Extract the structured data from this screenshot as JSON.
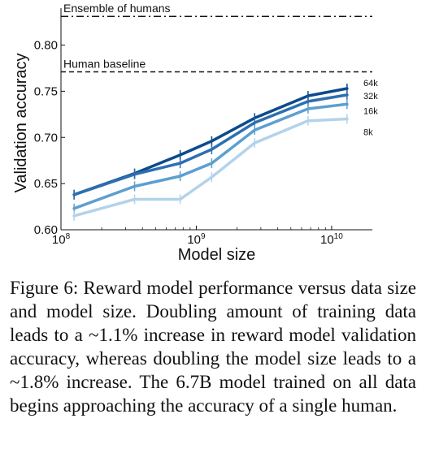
{
  "chart_data": {
    "type": "line",
    "xlabel": "Model size",
    "ylabel": "Validation accuracy",
    "x_scale": "log",
    "xlim": [
      100000000,
      20000000000
    ],
    "ylim": [
      0.6,
      0.84
    ],
    "x_ticks": [
      {
        "value": 100000000,
        "base": "10",
        "exp": "8"
      },
      {
        "value": 1000000000,
        "base": "10",
        "exp": "9"
      },
      {
        "value": 10000000000,
        "base": "10",
        "exp": "10"
      }
    ],
    "y_ticks": [
      {
        "value": 0.6,
        "label": "0.60"
      },
      {
        "value": 0.65,
        "label": "0.65"
      },
      {
        "value": 0.7,
        "label": "0.70"
      },
      {
        "value": 0.75,
        "label": "0.75"
      },
      {
        "value": 0.8,
        "label": "0.80"
      }
    ],
    "x": [
      125000000,
      350000000,
      760000000,
      1300000000,
      2700000000,
      6700000000,
      13000000000
    ],
    "series": [
      {
        "name": "64k",
        "color": "#0d4a8c",
        "values": [
          0.638,
          0.661,
          0.681,
          0.696,
          0.721,
          0.745,
          0.753
        ]
      },
      {
        "name": "32k",
        "color": "#2d6fb0",
        "values": [
          0.638,
          0.66,
          0.672,
          0.687,
          0.716,
          0.739,
          0.746
        ]
      },
      {
        "name": "16k",
        "color": "#5d9fcf",
        "values": [
          0.623,
          0.647,
          0.658,
          0.672,
          0.708,
          0.731,
          0.736
        ]
      },
      {
        "name": "8k",
        "color": "#b3d3ea",
        "values": [
          0.615,
          0.633,
          0.633,
          0.657,
          0.694,
          0.718,
          0.72
        ]
      }
    ],
    "reference_lines": [
      {
        "label": "Ensemble of humans",
        "value": 0.831,
        "style": "dashdot"
      },
      {
        "label": "Human baseline",
        "value": 0.771,
        "style": "dashed"
      }
    ],
    "grid": false
  },
  "caption": "Figure 6: Reward model performance versus data size and model size. Doubling amount of training data leads to a ~1.1% increase in reward model validation accuracy, whereas doubling the model size leads to a ~1.8% increase. The 6.7B model trained on all data begins approaching the accuracy of a single human."
}
